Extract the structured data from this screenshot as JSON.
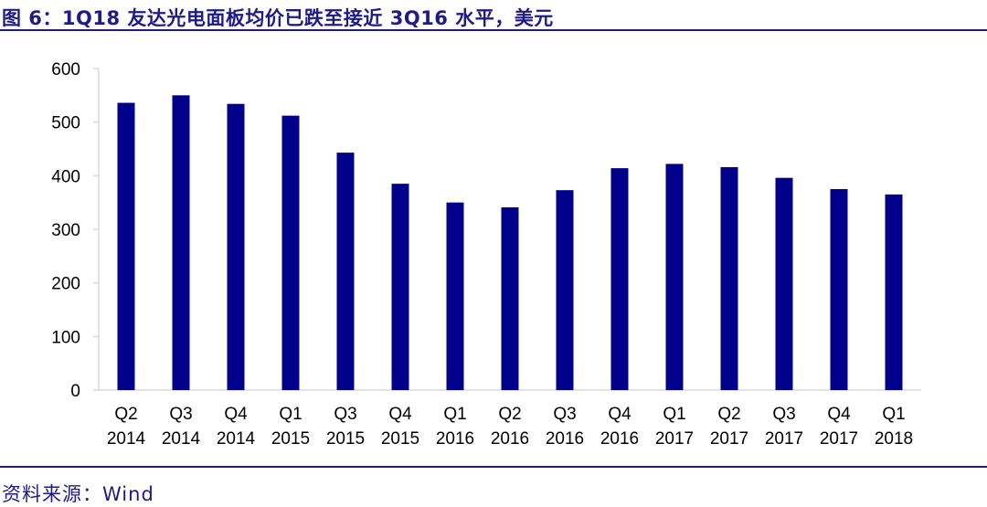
{
  "title": "图 6：1Q18 友达光电面板均价已跌至接近 3Q16 水平，美元",
  "source": "资料来源：Wind",
  "colors": {
    "bar": "#00008b",
    "rule": "#1f1a8a",
    "axis": "#d9d9d9"
  },
  "chart_data": {
    "type": "bar",
    "categories": [
      [
        "Q2",
        "2014"
      ],
      [
        "Q3",
        "2014"
      ],
      [
        "Q4",
        "2014"
      ],
      [
        "Q1",
        "2015"
      ],
      [
        "Q3",
        "2015"
      ],
      [
        "Q4",
        "2015"
      ],
      [
        "Q1",
        "2016"
      ],
      [
        "Q2",
        "2016"
      ],
      [
        "Q3",
        "2016"
      ],
      [
        "Q4",
        "2016"
      ],
      [
        "Q1",
        "2017"
      ],
      [
        "Q2",
        "2017"
      ],
      [
        "Q3",
        "2017"
      ],
      [
        "Q4",
        "2017"
      ],
      [
        "Q1",
        "2018"
      ]
    ],
    "values": [
      536,
      550,
      534,
      512,
      443,
      385,
      350,
      341,
      373,
      414,
      422,
      416,
      396,
      375,
      365
    ],
    "ylim": [
      0,
      600
    ],
    "yticks": [
      0,
      100,
      200,
      300,
      400,
      500,
      600
    ],
    "grid": false,
    "legend": "none"
  }
}
